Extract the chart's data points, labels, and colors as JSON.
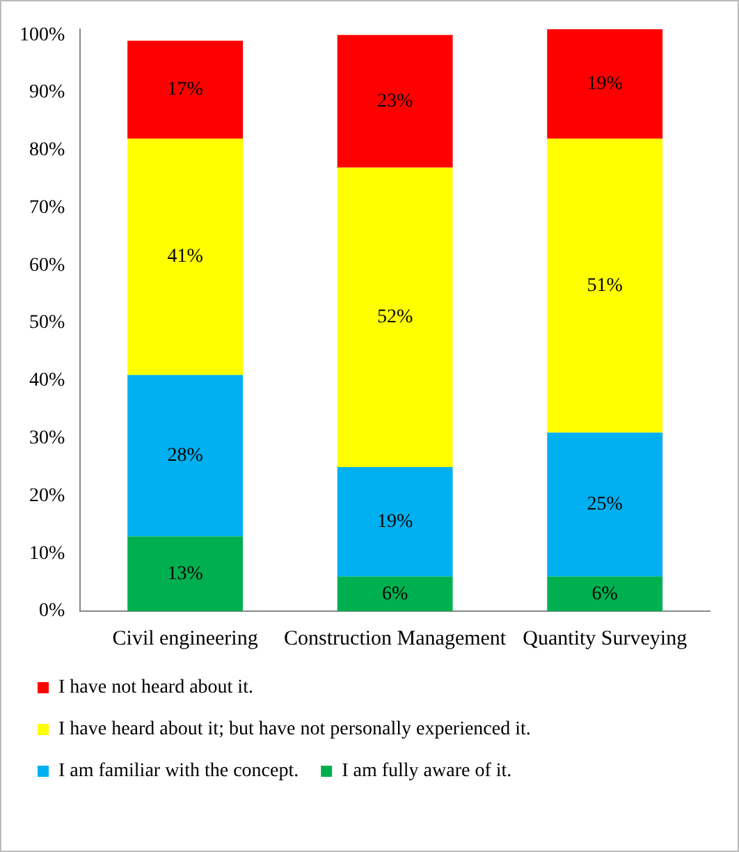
{
  "chart_data": {
    "type": "bar",
    "stacked": true,
    "categories": [
      "Civil engineering",
      "Construction Management",
      "Quantity Surveying"
    ],
    "series": [
      {
        "name": "I am fully aware of it.",
        "color": "#00b050",
        "values": [
          13,
          6,
          6
        ],
        "value_labels": [
          "13%",
          "6%",
          "6%"
        ]
      },
      {
        "name": "I am familiar with the concept.",
        "color": "#00b0f0",
        "values": [
          28,
          19,
          25
        ],
        "value_labels": [
          "28%",
          "19%",
          "25%"
        ]
      },
      {
        "name": "I have heard about it; but have not personally experienced it.",
        "color": "#ffff00",
        "values": [
          41,
          52,
          51
        ],
        "value_labels": [
          "41%",
          "52%",
          "51%"
        ]
      },
      {
        "name": "I have not heard about it.",
        "color": "#ff0000",
        "values": [
          17,
          23,
          19
        ],
        "value_labels": [
          "17%",
          "23%",
          "19%"
        ]
      }
    ],
    "ylim": [
      0,
      101
    ],
    "yticks": [
      {
        "value": 0,
        "label": "0%"
      },
      {
        "value": 10,
        "label": "10%"
      },
      {
        "value": 20,
        "label": "20%"
      },
      {
        "value": 30,
        "label": "30%"
      },
      {
        "value": 40,
        "label": "40%"
      },
      {
        "value": 50,
        "label": "50%"
      },
      {
        "value": 60,
        "label": "60%"
      },
      {
        "value": 70,
        "label": "70%"
      },
      {
        "value": 80,
        "label": "80%"
      },
      {
        "value": 90,
        "label": "90%"
      },
      {
        "value": 100,
        "label": "100%"
      }
    ],
    "grid": false,
    "legend": "bottom"
  }
}
